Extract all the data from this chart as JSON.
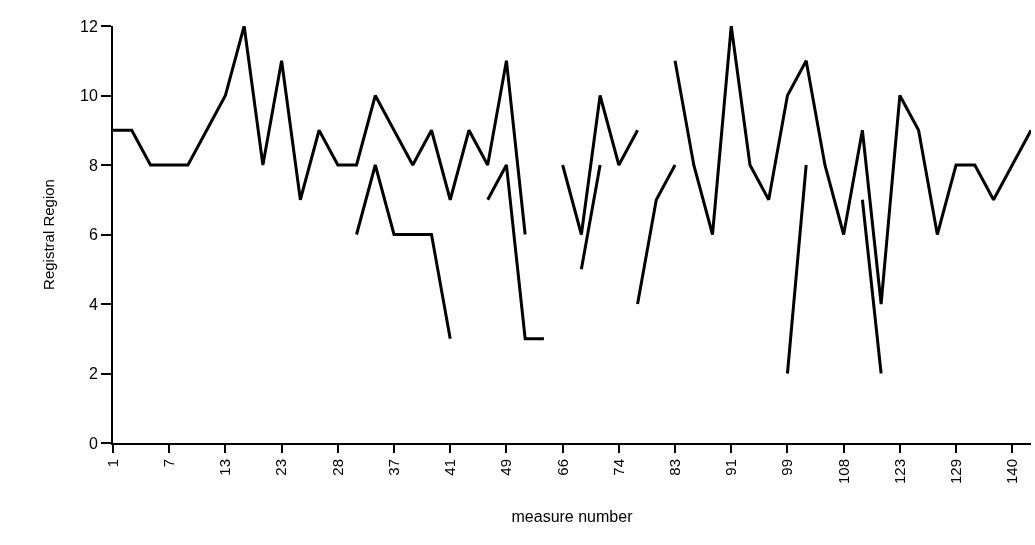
{
  "chart_data": {
    "type": "line",
    "xlabel": "measure number",
    "ylabel": "Registral Region",
    "categories": [
      "1",
      null,
      null,
      "7",
      null,
      null,
      "13",
      null,
      null,
      "23",
      null,
      null,
      "28",
      null,
      null,
      "37",
      null,
      null,
      "41",
      null,
      null,
      "49",
      null,
      null,
      "66",
      null,
      null,
      "74",
      null,
      null,
      "83",
      null,
      null,
      "91",
      null,
      null,
      "99",
      null,
      null,
      "108",
      null,
      null,
      "123",
      null,
      null,
      "129",
      null,
      null,
      "140",
      null
    ],
    "series": [
      {
        "color": "#000000",
        "values": [
          9,
          9,
          8,
          8,
          8,
          9,
          10,
          12,
          8,
          11,
          7,
          9,
          8,
          8,
          10,
          9,
          8,
          9,
          7,
          9,
          8,
          11,
          6,
          null,
          8,
          6,
          10,
          8,
          9,
          null,
          11,
          8,
          6,
          12,
          8,
          7,
          10,
          11,
          8,
          6,
          9,
          4,
          10,
          9,
          6,
          8,
          8,
          7,
          8,
          9
        ]
      },
      {
        "color": "#000000",
        "values": [
          null,
          null,
          null,
          null,
          null,
          null,
          null,
          null,
          null,
          null,
          null,
          null,
          null,
          6,
          8,
          6,
          6,
          6,
          3,
          null,
          7,
          8,
          3,
          3,
          null,
          5,
          8,
          null,
          4,
          7,
          8,
          null,
          null,
          null,
          null,
          null,
          2,
          8,
          null,
          null,
          7,
          2,
          null,
          null,
          null,
          null,
          null,
          null,
          null,
          null
        ]
      }
    ],
    "ylim": [
      0,
      12
    ],
    "yticks": [
      0,
      2,
      4,
      6,
      8,
      10,
      12
    ],
    "grid": false,
    "marker": "none",
    "line_style": "solid"
  }
}
